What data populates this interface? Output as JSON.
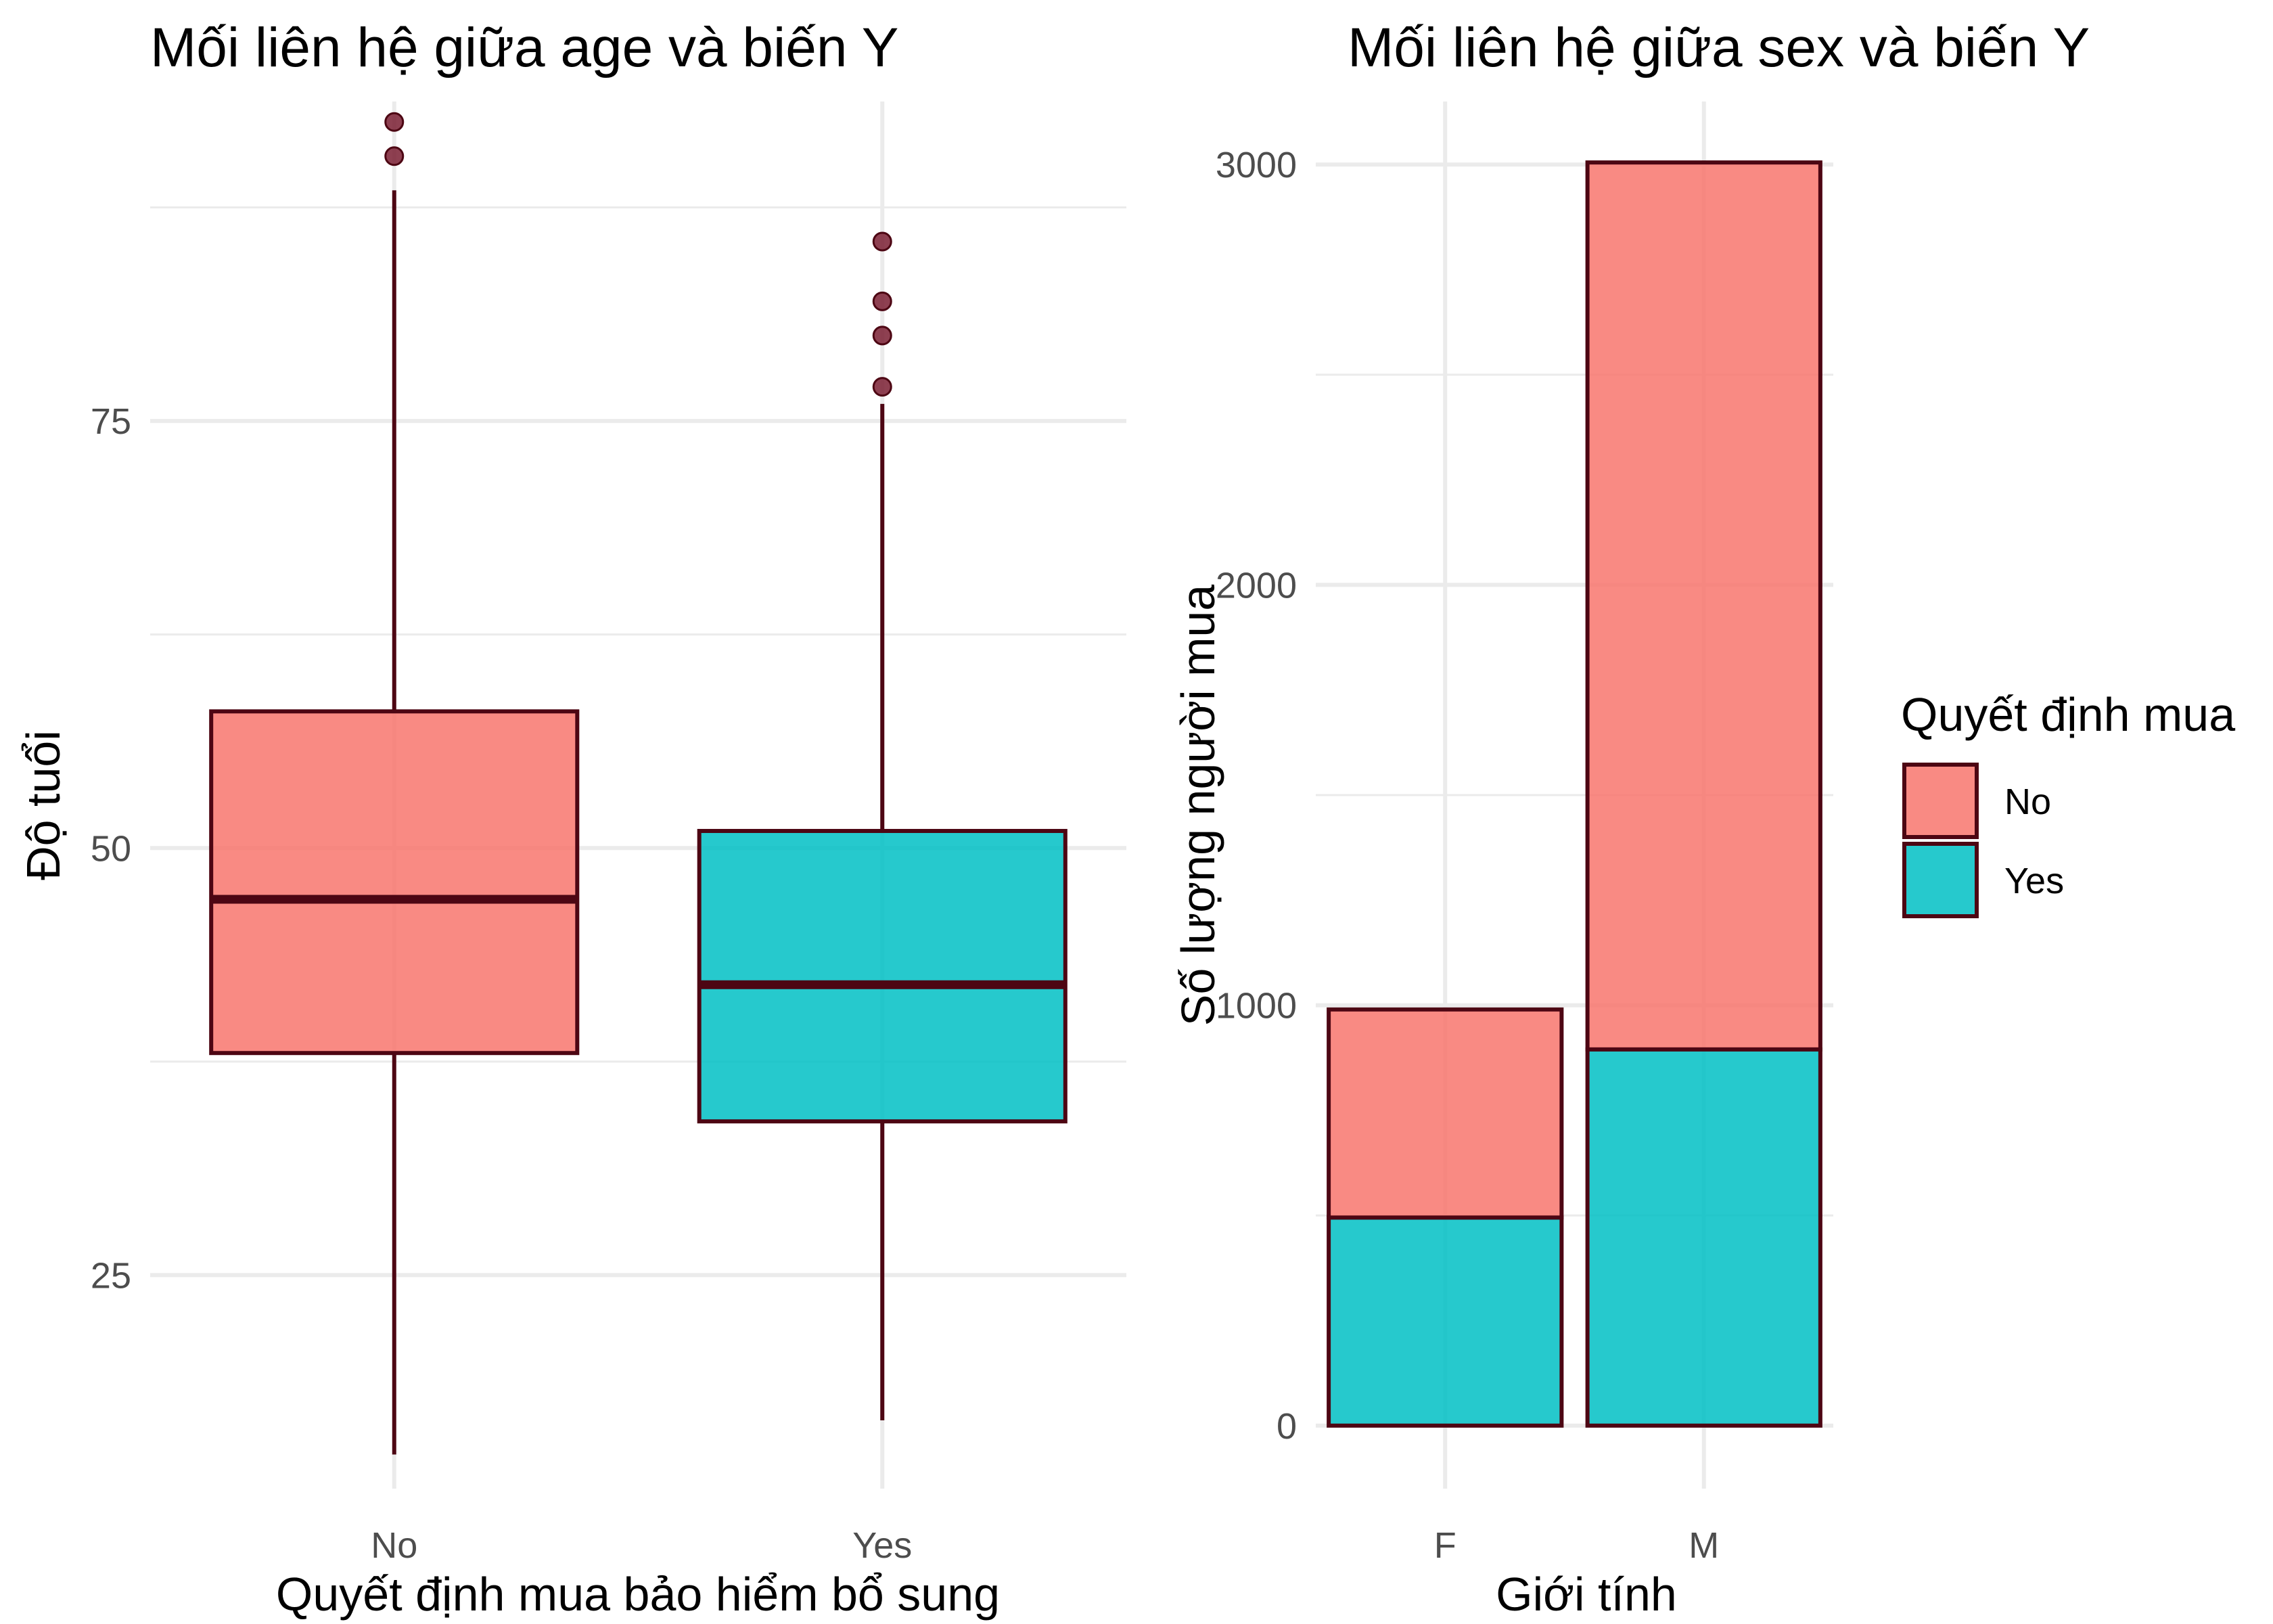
{
  "colors": {
    "no": "#F8766D",
    "yes": "#00BFC4",
    "outline": "#4d0613",
    "grid": "#ebebeb",
    "tick_text": "#4d4d4d"
  },
  "chart_data": [
    {
      "type": "boxplot",
      "title": "Mối liên hệ giữa age và biến Y",
      "xlabel": "Quyết định mua bảo hiểm bổ sung",
      "ylabel": "Độ tuổi",
      "categories": [
        "No",
        "Yes"
      ],
      "y_ticks": [
        25,
        50,
        75
      ],
      "ylim": [
        12.5,
        93.7
      ],
      "grid": true,
      "boxes": [
        {
          "category": "No",
          "min": 14.5,
          "q1": 38,
          "median": 47,
          "q3": 58,
          "max": 88.5,
          "outliers": [
            90.5,
            92.5
          ],
          "fill": "#F8766D"
        },
        {
          "category": "Yes",
          "min": 16.5,
          "q1": 34,
          "median": 42,
          "q3": 51,
          "max": 76,
          "outliers": [
            77,
            80,
            82,
            85.5
          ],
          "fill": "#00BFC4"
        }
      ]
    },
    {
      "type": "bar",
      "stacked": true,
      "title": "Mối liên hệ giữa sex và biến Y",
      "xlabel": "Giới tính",
      "ylabel": "Số lượng người mua",
      "categories": [
        "F",
        "M"
      ],
      "y_ticks": [
        0,
        1000,
        2000,
        3000
      ],
      "ylim": [
        -150,
        3150
      ],
      "grid": true,
      "series": [
        {
          "name": "Yes",
          "values": [
            495,
            895
          ],
          "color": "#00BFC4"
        },
        {
          "name": "No",
          "values": [
            495,
            2110
          ],
          "color": "#F8766D"
        }
      ],
      "legend": {
        "title": "Quyết định mua",
        "position": "right",
        "entries": [
          {
            "label": "No",
            "color": "#F8766D"
          },
          {
            "label": "Yes",
            "color": "#00BFC4"
          }
        ]
      }
    }
  ]
}
